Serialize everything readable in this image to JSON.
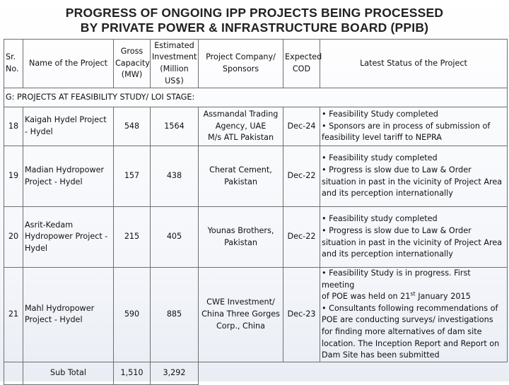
{
  "title": {
    "line1": "PROGRESS OF ONGOING IPP PROJECTS BEING PROCESSED",
    "line2": "BY PRIVATE POWER & INFRASTRUCTURE BOARD (PPIB)"
  },
  "table": {
    "headers": {
      "sr_no": [
        "Sr.",
        "No."
      ],
      "project_name": "Name of the Project",
      "capacity": [
        "Gross",
        "Capacity",
        "(MW)"
      ],
      "investment": [
        "Estimated",
        "Investment",
        "(Million",
        "US$)"
      ],
      "sponsors": [
        "Project Company/",
        "Sponsors"
      ],
      "cod": [
        "Expected",
        "COD"
      ],
      "status": "Latest Status of the Project"
    },
    "section_label": "G: PROJECTS AT FEASIBILITY STUDY/ LOI STAGE:",
    "rows": [
      {
        "sr": "18",
        "name": [
          "Kaigah Hydel Project",
          "- Hydel"
        ],
        "capacity": "548",
        "investment": "1564",
        "sponsors": [
          "Assmandal Trading",
          "Agency, UAE",
          "M/s ATL Pakistan"
        ],
        "cod": "Dec-24",
        "status": [
          "• Feasibility Study completed",
          "• Sponsors are in process of submission of",
          "feasibility level tariff to NEPRA"
        ]
      },
      {
        "sr": "19",
        "name": [
          "Madian Hydropower",
          "Project - Hydel"
        ],
        "capacity": "157",
        "investment": "438",
        "sponsors": [
          "Cherat Cement,",
          "Pakistan"
        ],
        "cod": "Dec-22",
        "status": [
          "• Feasibility study completed",
          "• Progress is slow due to Law & Order",
          "situation in past in the vicinity of Project Area",
          "and its perception internationally"
        ]
      },
      {
        "sr": "20",
        "name": [
          "Asrit-Kedam",
          "Hydropower Project -",
          "Hydel"
        ],
        "capacity": "215",
        "investment": "405",
        "sponsors": [
          "Younas Brothers,",
          "Pakistan"
        ],
        "cod": "Dec-22",
        "status": [
          "• Feasibility study completed",
          "• Progress is slow due to Law & Order",
          "situation in past in the vicinity of Project Area",
          "and its perception internationally"
        ]
      },
      {
        "sr": "21",
        "name": [
          "Mahl Hydropower",
          "Project - Hydel"
        ],
        "capacity": "590",
        "investment": "885",
        "sponsors": [
          "CWE Investment/",
          "China Three Gorges",
          "Corp., China"
        ],
        "cod": "Dec-23",
        "status_a": "• Feasibility Study is in progress. First meeting",
        "status_b_pre": "of POE was held on 21",
        "status_b_sup": "st",
        "status_b_post": " January 2015",
        "status_rest": [
          "• Consultants following recommendations of",
          "POE are conducting surveys/ investigations",
          "for finding more alternatives of dam site",
          "location. The Inception Report and Report on",
          "Dam Site has been submitted"
        ]
      }
    ],
    "subtotal": {
      "label": "Sub Total",
      "capacity": "1,510",
      "investment": "3,292"
    }
  }
}
